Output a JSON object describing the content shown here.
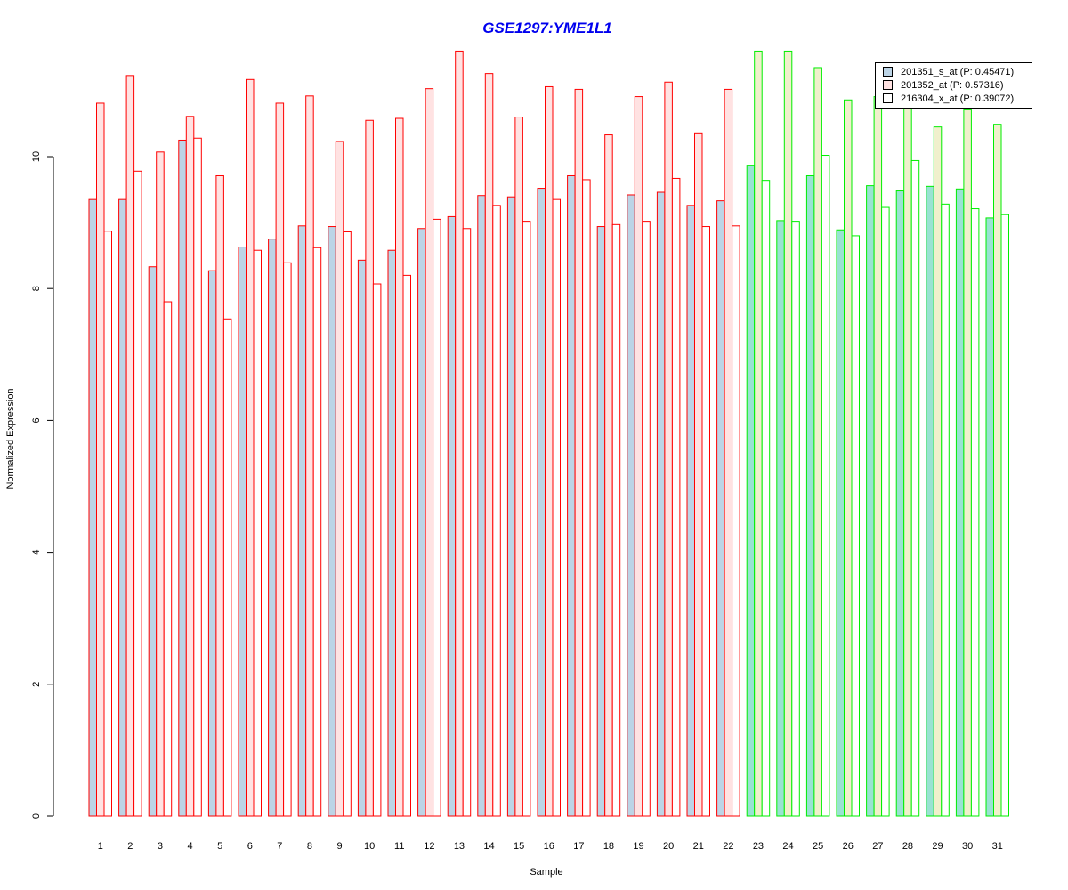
{
  "chart_data": {
    "type": "bar",
    "title": "GSE1297:YME1L1",
    "xlabel": "Sample",
    "ylabel": "Normalized Expression",
    "ylim": [
      0,
      11.7
    ],
    "yticks": [
      "0",
      "2",
      "4",
      "6",
      "8",
      "10"
    ],
    "grid": false,
    "legend_position": "top-right",
    "categories": [
      "1",
      "2",
      "3",
      "4",
      "5",
      "6",
      "7",
      "8",
      "9",
      "10",
      "11",
      "12",
      "13",
      "14",
      "15",
      "16",
      "17",
      "18",
      "19",
      "20",
      "21",
      "22",
      "23",
      "24",
      "25",
      "26",
      "27",
      "28",
      "29",
      "30",
      "31"
    ],
    "group_1_samples": 22,
    "group_colors": {
      "group_1_border": "#ff0000",
      "group_2_border": "#00ee00"
    },
    "series": [
      {
        "name": "201351_s_at (P: 0.45471)",
        "fill": "#bcd4e6",
        "fill_group_2": "#99e3d2",
        "values": [
          9.35,
          9.35,
          8.33,
          10.25,
          8.27,
          8.63,
          8.75,
          8.95,
          8.94,
          8.43,
          8.58,
          8.91,
          9.09,
          9.41,
          9.39,
          9.52,
          9.71,
          8.94,
          9.42,
          9.46,
          9.26,
          9.33,
          9.87,
          9.03,
          9.71,
          8.89,
          9.56,
          9.48,
          9.55,
          9.51,
          9.07
        ]
      },
      {
        "name": "201352_at (P: 0.57316)",
        "fill": "#ffe2e2",
        "fill_group_2": "#f0f0cc",
        "values": [
          10.81,
          11.23,
          10.07,
          10.61,
          9.71,
          11.17,
          10.81,
          10.92,
          10.23,
          10.55,
          10.58,
          11.03,
          11.6,
          11.26,
          10.6,
          11.06,
          11.02,
          10.33,
          10.91,
          11.13,
          10.36,
          11.02,
          11.6,
          11.6,
          11.35,
          10.86,
          10.91,
          10.83,
          10.45,
          10.71,
          10.49
        ]
      },
      {
        "name": "216304_x_at (P: 0.39072)",
        "fill": "#ffffff",
        "fill_group_2": "#ffffff",
        "values": [
          8.87,
          9.78,
          7.8,
          10.28,
          7.54,
          8.58,
          8.39,
          8.62,
          8.86,
          8.07,
          8.2,
          9.05,
          8.91,
          9.26,
          9.02,
          9.35,
          9.65,
          8.97,
          9.02,
          9.67,
          8.94,
          8.95,
          9.64,
          9.02,
          10.02,
          8.8,
          9.23,
          9.94,
          9.28,
          9.21,
          9.12
        ]
      }
    ]
  }
}
